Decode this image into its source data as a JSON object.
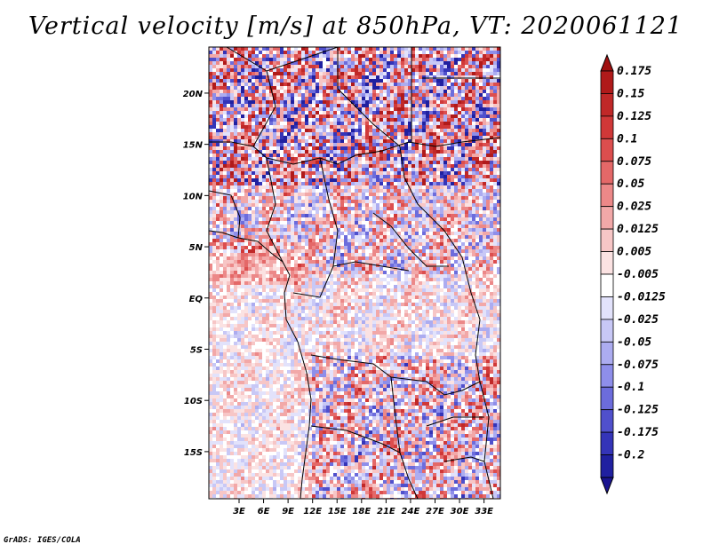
{
  "title": "Vertical velocity [m/s] at 850hPa, VT: 2020061121",
  "credit": "GrADS: IGES/COLA",
  "map": {
    "lon_range": [
      -0.7,
      35.0
    ],
    "lat_range": [
      -19.6,
      24.5
    ],
    "lat_ticks": [
      {
        "value": 20,
        "label": "20N"
      },
      {
        "value": 15,
        "label": "15N"
      },
      {
        "value": 10,
        "label": "10N"
      },
      {
        "value": 5,
        "label": "5N"
      },
      {
        "value": 0,
        "label": "EQ"
      },
      {
        "value": -5,
        "label": "5S"
      },
      {
        "value": -10,
        "label": "10S"
      },
      {
        "value": -15,
        "label": "15S"
      }
    ],
    "lon_ticks": [
      {
        "value": 3,
        "label": "3E"
      },
      {
        "value": 6,
        "label": "6E"
      },
      {
        "value": 9,
        "label": "9E"
      },
      {
        "value": 12,
        "label": "12E"
      },
      {
        "value": 15,
        "label": "15E"
      },
      {
        "value": 18,
        "label": "18E"
      },
      {
        "value": 21,
        "label": "21E"
      },
      {
        "value": 24,
        "label": "24E"
      },
      {
        "value": 27,
        "label": "27E"
      },
      {
        "value": 30,
        "label": "30E"
      },
      {
        "value": 33,
        "label": "33E"
      }
    ]
  },
  "colorbar": {
    "levels": [
      {
        "label": "0.175",
        "color": "#b01a1a"
      },
      {
        "label": "0.15",
        "color": "#c02828"
      },
      {
        "label": "0.125",
        "color": "#d03838"
      },
      {
        "label": "0.1",
        "color": "#dc4e4e"
      },
      {
        "label": "0.075",
        "color": "#e46868"
      },
      {
        "label": "0.05",
        "color": "#ec8888"
      },
      {
        "label": "0.025",
        "color": "#f2a8a8"
      },
      {
        "label": "0.0125",
        "color": "#f7c6c6"
      },
      {
        "label": "0.005",
        "color": "#fbe2e2"
      },
      {
        "label": "-0.005",
        "color": "#ffffff"
      },
      {
        "label": "-0.0125",
        "color": "#e2e2fb"
      },
      {
        "label": "-0.025",
        "color": "#c8c8f6"
      },
      {
        "label": "-0.05",
        "color": "#acacf0"
      },
      {
        "label": "-0.075",
        "color": "#8e8eea"
      },
      {
        "label": "-0.1",
        "color": "#6c6cdc"
      },
      {
        "label": "-0.125",
        "color": "#5050cc"
      },
      {
        "label": "-0.175",
        "color": "#3434b8"
      },
      {
        "label": "-0.2",
        "color": "#2020a0"
      }
    ],
    "top_triangle_color": "#a01010",
    "bottom_triangle_color": "#1a1490"
  }
}
